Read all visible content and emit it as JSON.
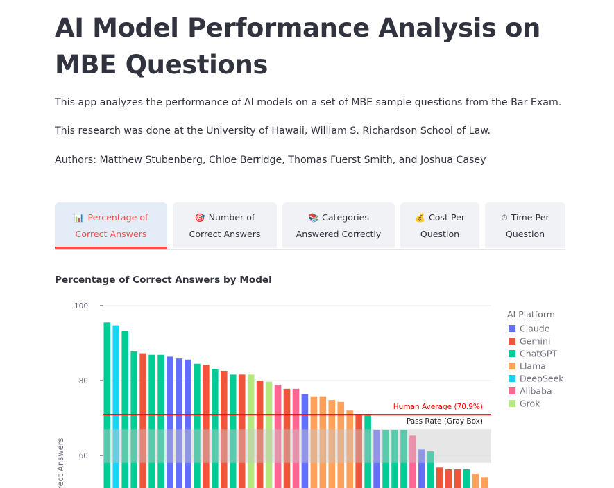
{
  "header": {
    "title": "AI Model Performance Analysis on MBE Questions"
  },
  "intro": {
    "p1": "This app analyzes the performance of AI models on a set of MBE sample questions from the Bar Exam.",
    "p2": "This research was done at the University of Hawaii, William S. Richardson School of Law.",
    "p3": "Authors: Matthew Stubenberg, Chloe Berridge, Thomas Fuerst Smith, and Joshua Casey"
  },
  "tabs": [
    {
      "icon": "📊",
      "icon_name": "bar-chart-icon",
      "line1": "Percentage of",
      "line2": "Correct Answers",
      "active": true
    },
    {
      "icon": "🎯",
      "icon_name": "target-icon",
      "line1": "Number of",
      "line2": "Correct Answers",
      "active": false
    },
    {
      "icon": "📚",
      "icon_name": "books-icon",
      "line1": "Categories",
      "line2": "Answered Correctly",
      "active": false
    },
    {
      "icon": "💰",
      "icon_name": "money-bag-icon",
      "line1": "Cost Per",
      "line2": "Question",
      "active": false
    },
    {
      "icon": "⏱",
      "icon_name": "stopwatch-icon",
      "line1": "Time Per",
      "line2": "Question",
      "active": false
    }
  ],
  "chart_section": {
    "title": "Percentage of Correct Answers by Model"
  },
  "chart_data": {
    "type": "bar",
    "title": "Percentage of Correct Answers by Model",
    "ylabel": "Correct Answers",
    "ylim": [
      54,
      100
    ],
    "yticks": [
      60,
      80,
      100
    ],
    "legend_title": "AI Platform",
    "legend_position": "right",
    "platforms": [
      {
        "name": "Claude",
        "color": "#636efa"
      },
      {
        "name": "Gemini",
        "color": "#ef553b"
      },
      {
        "name": "ChatGPT",
        "color": "#00cc96"
      },
      {
        "name": "Llama",
        "color": "#ffa15a"
      },
      {
        "name": "DeepSeek",
        "color": "#19d3f3"
      },
      {
        "name": "Alibaba",
        "color": "#ff6692"
      },
      {
        "name": "Grok",
        "color": "#b6e880"
      }
    ],
    "bars": [
      {
        "platform": "ChatGPT",
        "value": 95.5
      },
      {
        "platform": "DeepSeek",
        "value": 94.7
      },
      {
        "platform": "ChatGPT",
        "value": 93.2
      },
      {
        "platform": "ChatGPT",
        "value": 87.8
      },
      {
        "platform": "Gemini",
        "value": 87.3
      },
      {
        "platform": "ChatGPT",
        "value": 86.9
      },
      {
        "platform": "ChatGPT",
        "value": 86.9
      },
      {
        "platform": "Claude",
        "value": 86.4
      },
      {
        "platform": "Claude",
        "value": 85.9
      },
      {
        "platform": "Claude",
        "value": 85.6
      },
      {
        "platform": "ChatGPT",
        "value": 84.5
      },
      {
        "platform": "Gemini",
        "value": 84.2
      },
      {
        "platform": "ChatGPT",
        "value": 83.1
      },
      {
        "platform": "Gemini",
        "value": 82.6
      },
      {
        "platform": "ChatGPT",
        "value": 81.6
      },
      {
        "platform": "Gemini",
        "value": 81.6
      },
      {
        "platform": "Grok",
        "value": 81.6
      },
      {
        "platform": "Gemini",
        "value": 80.0
      },
      {
        "platform": "Grok",
        "value": 79.7
      },
      {
        "platform": "Alibaba",
        "value": 78.9
      },
      {
        "platform": "Gemini",
        "value": 77.8
      },
      {
        "platform": "Alibaba",
        "value": 77.8
      },
      {
        "platform": "Claude",
        "value": 76.4
      },
      {
        "platform": "Llama",
        "value": 75.8
      },
      {
        "platform": "Llama",
        "value": 75.8
      },
      {
        "platform": "Llama",
        "value": 74.8
      },
      {
        "platform": "Llama",
        "value": 74.3
      },
      {
        "platform": "Llama",
        "value": 72.0
      },
      {
        "platform": "Gemini",
        "value": 71.1
      },
      {
        "platform": "ChatGPT",
        "value": 71.1
      },
      {
        "platform": "Claude",
        "value": 66.8
      },
      {
        "platform": "ChatGPT",
        "value": 66.8
      },
      {
        "platform": "ChatGPT",
        "value": 66.8
      },
      {
        "platform": "ChatGPT",
        "value": 66.8
      },
      {
        "platform": "Alibaba",
        "value": 65.3
      },
      {
        "platform": "Claude",
        "value": 61.6
      },
      {
        "platform": "ChatGPT",
        "value": 61.1
      },
      {
        "platform": "Gemini",
        "value": 56.8
      },
      {
        "platform": "Gemini",
        "value": 56.3
      },
      {
        "platform": "Gemini",
        "value": 56.3
      },
      {
        "platform": "ChatGPT",
        "value": 56.3
      },
      {
        "platform": "Llama",
        "value": 55.0
      },
      {
        "platform": "Llama",
        "value": 54.2
      }
    ],
    "human_average": {
      "value": 70.9,
      "label": "Human Average (70.9%)",
      "color": "#ff0000"
    },
    "pass_rate": {
      "low": 58.0,
      "high": 67.0,
      "label": "Pass Rate (Gray Box)"
    }
  }
}
